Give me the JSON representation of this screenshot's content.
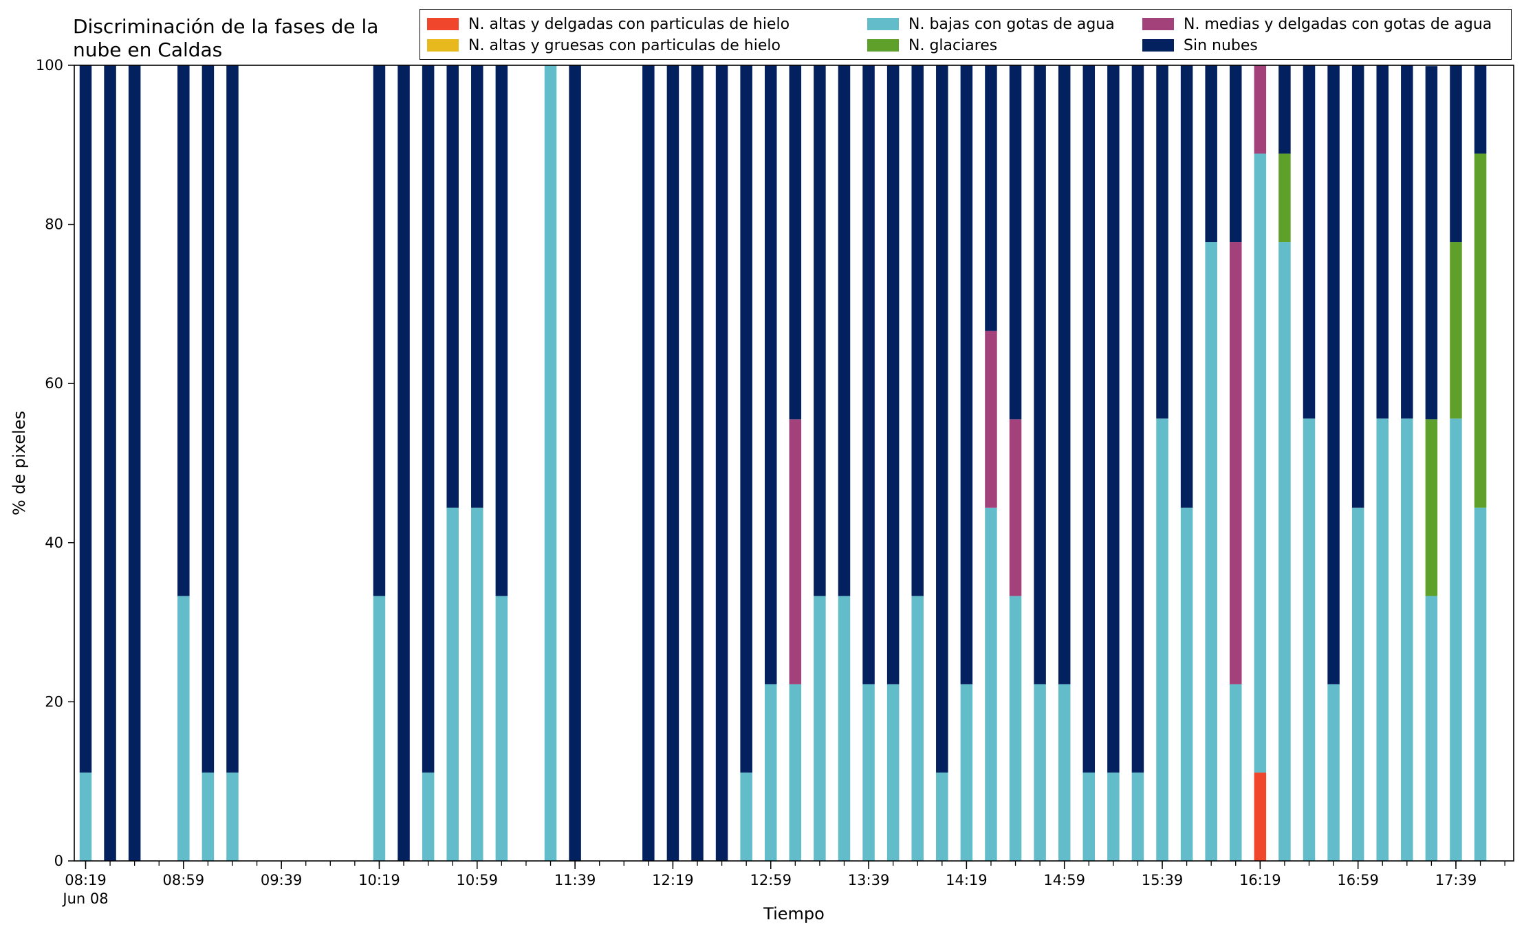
{
  "chart_data": {
    "type": "bar",
    "stacked": true,
    "title": "Discriminación de la fases de la nube en Caldas",
    "xlabel": "Tiempo",
    "ylabel": "% de pixeles",
    "ylim": [
      0,
      100
    ],
    "yticks": [
      "0",
      "20",
      "40",
      "60",
      "80",
      "100"
    ],
    "xtick_labels": [
      "08:19",
      "08:59",
      "09:39",
      "10:19",
      "10:59",
      "11:39",
      "12:19",
      "12:59",
      "13:39",
      "14:19",
      "14:59",
      "15:39",
      "16:19",
      "16:59",
      "17:39"
    ],
    "date_label": "Jun 08",
    "legend_position": "top-right",
    "categories": [
      "08:19",
      "08:29",
      "08:39",
      "08:49",
      "08:59",
      "09:09",
      "09:19",
      "09:29",
      "09:39",
      "09:49",
      "09:59",
      "10:09",
      "10:19",
      "10:29",
      "10:39",
      "10:49",
      "10:59",
      "11:09",
      "11:19",
      "11:29",
      "11:39",
      "11:49",
      "11:59",
      "12:09",
      "12:19",
      "12:29",
      "12:39",
      "12:49",
      "12:59",
      "13:09",
      "13:19",
      "13:29",
      "13:39",
      "13:49",
      "13:59",
      "14:09",
      "14:19",
      "14:29",
      "14:39",
      "14:49",
      "14:59",
      "15:09",
      "15:19",
      "15:29",
      "15:39",
      "15:49",
      "15:59",
      "16:09",
      "16:19",
      "16:29",
      "16:39",
      "16:49",
      "16:59",
      "17:09",
      "17:19",
      "17:29",
      "17:39",
      "17:49"
    ],
    "series": [
      {
        "name": "N. altas y delgadas con particulas de hielo",
        "color": "#f0472c",
        "values": [
          0,
          0,
          0,
          null,
          0,
          0,
          0,
          null,
          null,
          null,
          null,
          null,
          0,
          0,
          0,
          0,
          0,
          0,
          null,
          0,
          0,
          null,
          null,
          0,
          0,
          0,
          0,
          0,
          0,
          0,
          0,
          0,
          0,
          0,
          0,
          0,
          0,
          0,
          0,
          0,
          0,
          0,
          0,
          0,
          0,
          0,
          0,
          0,
          11.1,
          0,
          0,
          0,
          0,
          0,
          0,
          0,
          0,
          0
        ]
      },
      {
        "name": "N. altas y gruesas con particulas de hielo",
        "color": "#e7b91c",
        "values": [
          0,
          0,
          0,
          null,
          0,
          0,
          0,
          null,
          null,
          null,
          null,
          null,
          0,
          0,
          0,
          0,
          0,
          0,
          null,
          0,
          0,
          null,
          null,
          0,
          0,
          0,
          0,
          0,
          0,
          0,
          0,
          0,
          0,
          0,
          0,
          0,
          0,
          0,
          0,
          0,
          0,
          0,
          0,
          0,
          0,
          0,
          0,
          0,
          0,
          0,
          0,
          0,
          0,
          0,
          0,
          0,
          0,
          0
        ]
      },
      {
        "name": "N. bajas con gotas de agua",
        "color": "#62bcca",
        "values": [
          11.1,
          0,
          0,
          null,
          33.3,
          11.1,
          11.1,
          null,
          null,
          null,
          null,
          null,
          33.3,
          0,
          11.1,
          44.4,
          44.4,
          33.3,
          null,
          100,
          0,
          null,
          null,
          0,
          0,
          0,
          0,
          11.1,
          22.2,
          22.2,
          33.3,
          33.3,
          22.2,
          22.2,
          33.3,
          11.1,
          22.2,
          44.4,
          33.3,
          22.2,
          22.2,
          11.1,
          11.1,
          11.1,
          55.6,
          44.4,
          77.8,
          22.2,
          77.8,
          77.8,
          55.6,
          22.2,
          44.4,
          55.6,
          55.6,
          33.3,
          55.6,
          44.4
        ]
      },
      {
        "name": "N. glaciares",
        "color": "#5ea02a",
        "values": [
          0,
          0,
          0,
          null,
          0,
          0,
          0,
          null,
          null,
          null,
          null,
          null,
          0,
          0,
          0,
          0,
          0,
          0,
          null,
          0,
          0,
          null,
          null,
          0,
          0,
          0,
          0,
          0,
          0,
          0,
          0,
          0,
          0,
          0,
          0,
          0,
          0,
          0,
          0,
          0,
          0,
          0,
          0,
          0,
          0,
          0,
          0,
          0,
          0,
          11.1,
          0,
          0,
          0,
          0,
          0,
          22.2,
          22.2,
          44.5
        ]
      },
      {
        "name": "N. medias y delgadas con gotas de agua",
        "color": "#a3417a",
        "values": [
          0,
          0,
          0,
          null,
          0,
          0,
          0,
          null,
          null,
          null,
          null,
          null,
          0,
          0,
          0,
          0,
          0,
          0,
          null,
          0,
          0,
          null,
          null,
          0,
          0,
          0,
          0,
          0,
          0,
          33.3,
          0,
          0,
          0,
          0,
          0,
          0,
          0,
          22.2,
          22.2,
          0,
          0,
          0,
          0,
          0,
          0,
          0,
          0,
          55.6,
          11.1,
          0,
          0,
          0,
          0,
          0,
          0,
          0,
          0,
          0
        ]
      },
      {
        "name": "Sin nubes",
        "color": "#03205f",
        "values": [
          88.9,
          100,
          100,
          null,
          66.7,
          88.9,
          88.9,
          null,
          null,
          null,
          null,
          null,
          66.7,
          100,
          88.9,
          55.6,
          55.6,
          66.7,
          null,
          0,
          100,
          null,
          null,
          100,
          100,
          100,
          100,
          88.9,
          77.8,
          44.5,
          66.7,
          66.7,
          77.8,
          77.8,
          66.7,
          88.9,
          77.8,
          33.4,
          44.5,
          77.8,
          77.8,
          88.9,
          88.9,
          88.9,
          44.4,
          55.6,
          22.2,
          22.2,
          0,
          11.1,
          44.4,
          77.8,
          55.6,
          44.4,
          44.4,
          44.4,
          22.2,
          11.1
        ]
      }
    ]
  }
}
